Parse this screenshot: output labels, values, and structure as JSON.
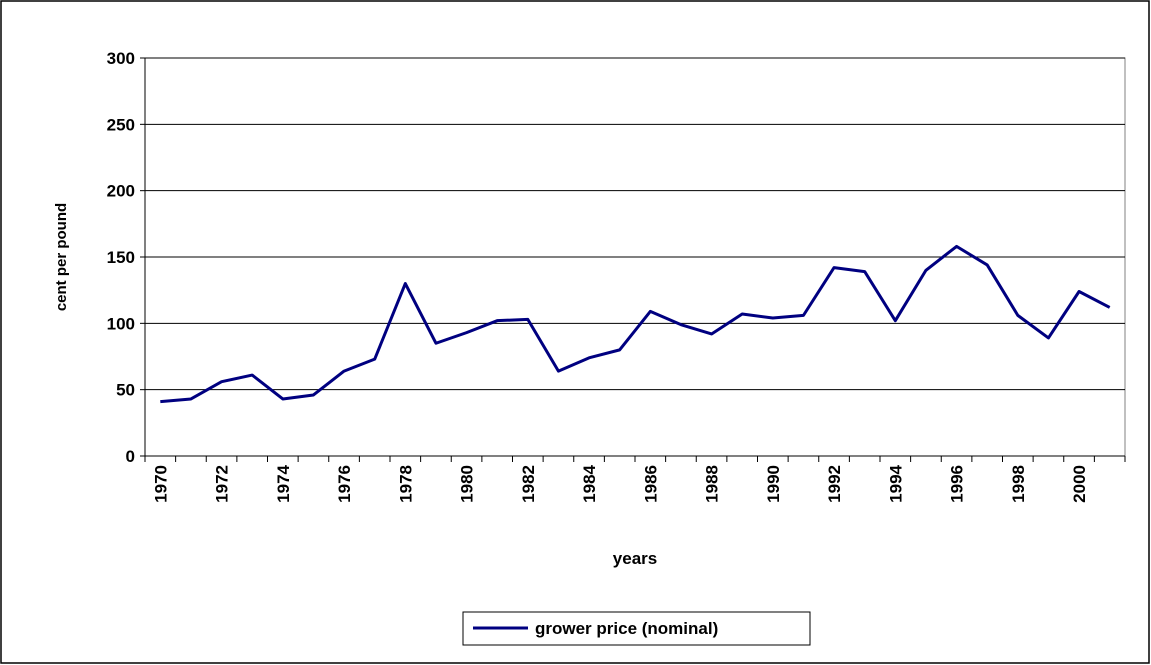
{
  "chart_data": {
    "type": "line",
    "xlabel": "years",
    "ylabel": "cent per pound",
    "categories": [
      "1970",
      null,
      "1972",
      null,
      "1974",
      null,
      "1976",
      null,
      "1978",
      null,
      "1980",
      null,
      "1982",
      null,
      "1984",
      null,
      "1986",
      null,
      "1988",
      null,
      "1990",
      null,
      "1992",
      null,
      "1994",
      null,
      "1996",
      null,
      "1998",
      null,
      "2000",
      null
    ],
    "series": [
      {
        "name": "grower price (nominal)",
        "color": "#000080",
        "values": [
          41,
          43,
          56,
          61,
          43,
          46,
          64,
          73,
          130,
          85,
          93,
          102,
          103,
          64,
          74,
          80,
          109,
          99,
          92,
          107,
          104,
          106,
          142,
          139,
          102,
          140,
          158,
          144,
          106,
          89,
          124,
          112
        ]
      }
    ],
    "ylim": [
      0,
      300
    ],
    "yticks": [
      0,
      50,
      100,
      150,
      200,
      250,
      300
    ],
    "grid": true,
    "legend": "bottom"
  }
}
